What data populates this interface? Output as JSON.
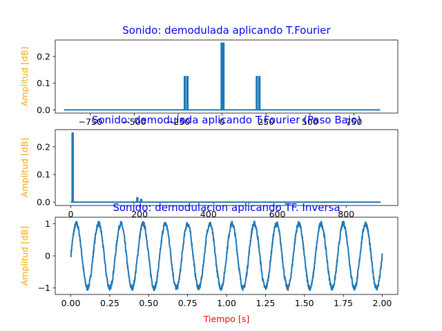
{
  "colors": {
    "line": "#1f77b4",
    "title": "#0000ff",
    "ylabel": "#ffa500",
    "xlabel": "#ff0000"
  },
  "chart_data": [
    {
      "type": "line",
      "title": "Sonido: demodulada aplicando T.Fourier",
      "xlabel": "",
      "ylabel": "Amplitud [dB]",
      "xlim": [
        -950,
        1000
      ],
      "ylim": [
        -0.012,
        0.262
      ],
      "xticks": [
        -750,
        -500,
        -250,
        0,
        250,
        500,
        750
      ],
      "yticks": [
        0.0,
        0.1,
        0.2
      ],
      "ytick_labels": [
        "0.0",
        "0.1",
        "0.2"
      ],
      "grid": false,
      "series": [
        {
          "points": [
            [
              -900,
              0
            ],
            [
              -215,
              0
            ],
            [
              -215,
              0.125
            ],
            [
              -210,
              0.125
            ],
            [
              -210,
              0
            ],
            [
              -200,
              0
            ],
            [
              -200,
              0.125
            ],
            [
              -195,
              0.125
            ],
            [
              -195,
              0
            ],
            [
              -5,
              0
            ],
            [
              -5,
              0.25
            ],
            [
              0,
              0.25
            ],
            [
              0,
              0
            ],
            [
              5,
              0
            ],
            [
              5,
              0.25
            ],
            [
              10,
              0.25
            ],
            [
              10,
              0
            ],
            [
              195,
              0
            ],
            [
              195,
              0.125
            ],
            [
              200,
              0.125
            ],
            [
              200,
              0
            ],
            [
              210,
              0
            ],
            [
              210,
              0.125
            ],
            [
              215,
              0.125
            ],
            [
              215,
              0
            ],
            [
              900,
              0
            ]
          ]
        }
      ]
    },
    {
      "type": "line",
      "title": "Sonido: demodulada aplicando T.Fourier (Paso Bajo)",
      "xlabel": "",
      "ylabel": "Amplitud [dB]",
      "xlim": [
        -45,
        950
      ],
      "ylim": [
        -0.012,
        0.262
      ],
      "xticks": [
        0,
        200,
        400,
        600,
        800
      ],
      "yticks": [
        0.0,
        0.1,
        0.2
      ],
      "ytick_labels": [
        "0.0",
        "0.1",
        "0.2"
      ],
      "grid": false,
      "series": [
        {
          "points": [
            [
              0,
              0
            ],
            [
              4,
              0
            ],
            [
              4,
              0.25
            ],
            [
              7,
              0.25
            ],
            [
              7,
              0
            ],
            [
              192,
              0
            ],
            [
              192,
              0.016
            ],
            [
              195,
              0.016
            ],
            [
              195,
              0
            ],
            [
              203,
              0
            ],
            [
              203,
              0.01
            ],
            [
              206,
              0.01
            ],
            [
              206,
              0
            ],
            [
              900,
              0
            ]
          ]
        }
      ]
    },
    {
      "type": "line",
      "title": "Sonido: demodulacion aplicando TF. Inversa",
      "xlabel": "Tiempo [s]",
      "ylabel": "Amplitud [dB]",
      "xlim": [
        -0.1,
        2.1
      ],
      "ylim": [
        -1.2,
        1.2
      ],
      "xticks": [
        0.0,
        0.25,
        0.5,
        0.75,
        1.0,
        1.25,
        1.5,
        1.75,
        2.0
      ],
      "xtick_labels": [
        "0.00",
        "0.25",
        "0.50",
        "0.75",
        "1.00",
        "1.25",
        "1.50",
        "1.75",
        "2.00"
      ],
      "yticks": [
        -1,
        0,
        1
      ],
      "grid": false,
      "series": [
        {
          "function": "sin",
          "x_range": [
            0,
            2
          ],
          "amplitude": 1.0,
          "frequency_hz": 7,
          "initial_value": 0.0,
          "noise_amplitude": 0.08
        }
      ]
    }
  ]
}
